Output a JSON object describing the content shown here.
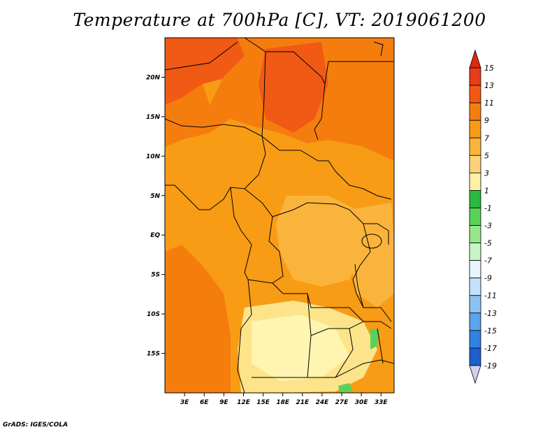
{
  "title": "Temperature at 700hPa [C], VT: 2019061200",
  "credit": "GrADS: IGES/COLA",
  "map": {
    "lon_range": [
      0,
      35
    ],
    "lat_range": [
      -20,
      25
    ],
    "lat_ticks": [
      {
        "value": 20,
        "label": "20N"
      },
      {
        "value": 15,
        "label": "15N"
      },
      {
        "value": 10,
        "label": "10N"
      },
      {
        "value": 5,
        "label": "5N"
      },
      {
        "value": 0,
        "label": "EQ"
      },
      {
        "value": -5,
        "label": "5S"
      },
      {
        "value": -10,
        "label": "10S"
      },
      {
        "value": -15,
        "label": "15S"
      }
    ],
    "lon_ticks": [
      {
        "value": 3,
        "label": "3E"
      },
      {
        "value": 6,
        "label": "6E"
      },
      {
        "value": 9,
        "label": "9E"
      },
      {
        "value": 12,
        "label": "12E"
      },
      {
        "value": 15,
        "label": "15E"
      },
      {
        "value": 18,
        "label": "18E"
      },
      {
        "value": 21,
        "label": "21E"
      },
      {
        "value": 24,
        "label": "24E"
      },
      {
        "value": 27,
        "label": "27E"
      },
      {
        "value": 30,
        "label": "30E"
      },
      {
        "value": 33,
        "label": "33E"
      }
    ]
  },
  "colorbar": {
    "levels": [
      "15",
      "13",
      "11",
      "9",
      "7",
      "5",
      "3",
      "1",
      "-1",
      "-3",
      "-5",
      "-7",
      "-9",
      "-11",
      "-13",
      "-15",
      "-17",
      "-19"
    ],
    "colors": [
      "#e83c1a",
      "#f25a14",
      "#f57d0e",
      "#f79c14",
      "#fab43c",
      "#fdd27a",
      "#fff0a6",
      "#2db843",
      "#5ad25a",
      "#96e68c",
      "#c8f5c3",
      "#e6f5fa",
      "#c3e1fa",
      "#8cc3f5",
      "#5aa5eb",
      "#3282e1",
      "#1e5fcd",
      "#1441b4",
      "#0a1e8c",
      "#0a0a5a"
    ],
    "end_colors": {
      "top": "#e02810",
      "bottom": "#d2d2f0"
    }
  },
  "fields": {
    "warm_north": "#f05a14",
    "mid_band": "#f57d0e",
    "base": "#f79c14",
    "warm_south": "#fab43c",
    "pale": "#fde48a",
    "palest": "#fff4b0",
    "cool_spots": "#5ad25a"
  }
}
